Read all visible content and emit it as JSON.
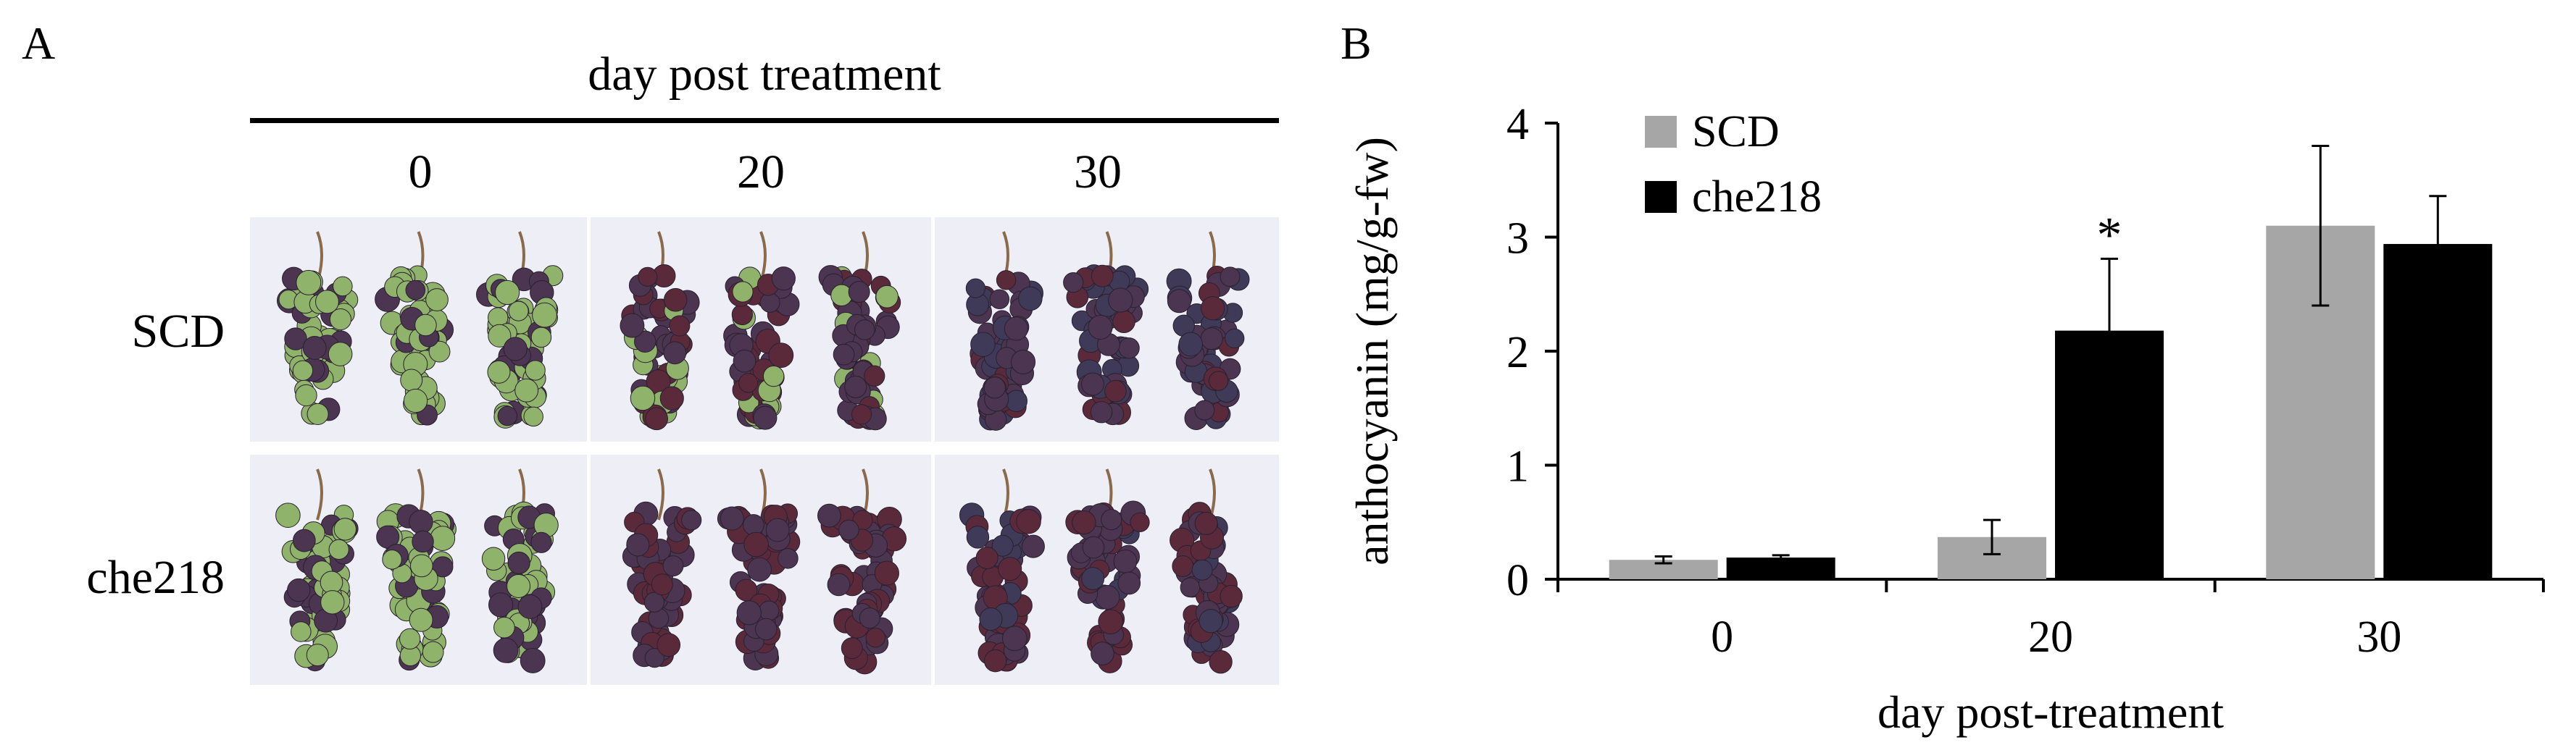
{
  "panel_a": {
    "letter": "A",
    "header": "day post treatment",
    "days": [
      "0",
      "20",
      "30"
    ],
    "rows": [
      "SCD",
      "che218"
    ],
    "berry_colors": {
      "green": "#8fb36a",
      "purple": "#4b3550",
      "red": "#5a2a3a",
      "blue": "#3e3a58",
      "stem": "#8a6a4a"
    }
  },
  "panel_b": {
    "letter": "B"
  },
  "chart_data": {
    "type": "bar",
    "title": "",
    "xlabel": "day post-treatment",
    "ylabel": "anthocyanin (mg/g-fw)",
    "categories": [
      "0",
      "20",
      "30"
    ],
    "ylim": [
      0,
      4
    ],
    "yticks": [
      "0",
      "1",
      "2",
      "3",
      "4"
    ],
    "series": [
      {
        "name": "SCD",
        "color": "#a6a6a6",
        "values": [
          0.17,
          0.37,
          3.1
        ],
        "errors": [
          0.03,
          0.15,
          0.7
        ]
      },
      {
        "name": "che218",
        "color": "#000000",
        "values": [
          0.19,
          2.18,
          2.94
        ],
        "errors": [
          0.02,
          0.63,
          0.42
        ]
      }
    ],
    "annotations": [
      {
        "category": "20",
        "series": "che218",
        "text": "*"
      }
    ],
    "legend": "top-left",
    "grid": false
  }
}
